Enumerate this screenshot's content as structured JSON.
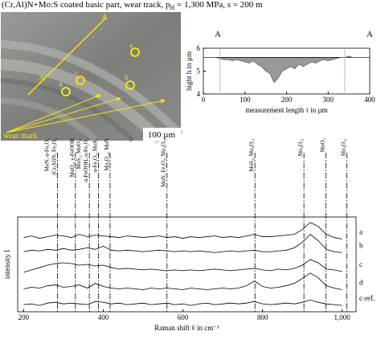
{
  "title": [
    "(Cr,Al)N+Mo:S coated basic part, wear track, p",
    "H",
    " = 1,300 MPa, s = 200 m"
  ],
  "micrograph": {
    "section_labels": [
      "A",
      "A"
    ],
    "spots": [
      "a",
      "b",
      "c",
      "d"
    ],
    "arrow_label": "wear mark",
    "scale_bar": "100 µm"
  },
  "chart_data": [
    {
      "type": "area",
      "end_labels": [
        "A",
        "A"
      ],
      "x_label": "measurement length τ in µm",
      "y_label": "hight h in µm",
      "x": [
        0,
        10,
        20,
        30,
        40,
        50,
        60,
        70,
        80,
        90,
        100,
        110,
        120,
        130,
        140,
        150,
        160,
        170,
        180,
        190,
        200,
        210,
        220,
        230,
        240,
        250,
        260,
        270,
        280,
        290,
        300,
        310,
        320,
        330,
        340,
        350,
        360,
        370,
        380,
        390,
        400
      ],
      "values": [
        5.6,
        5.6,
        5.6,
        5.6,
        5.55,
        5.5,
        5.5,
        5.45,
        5.5,
        5.45,
        5.4,
        5.35,
        5.45,
        5.3,
        5.2,
        5.0,
        4.9,
        4.5,
        4.7,
        5.0,
        5.1,
        5.2,
        5.1,
        5.3,
        5.2,
        5.3,
        5.4,
        5.35,
        5.45,
        5.5,
        5.45,
        5.5,
        5.55,
        5.6,
        5.6,
        5.65,
        5.6,
        5.6,
        5.6,
        5.6,
        5.6
      ],
      "baseline": 5.6,
      "vlines": [
        40,
        340
      ],
      "color": "#999999",
      "xlim": [
        0,
        400
      ],
      "ylim": [
        4,
        6
      ],
      "xticks": [
        0,
        100,
        200,
        300,
        400
      ],
      "yticks": [
        4,
        5,
        6
      ]
    },
    {
      "type": "line",
      "x_label": "Raman shift ṽ in cm⁻¹",
      "y_label": "intensity I",
      "x": [
        200,
        220,
        240,
        260,
        280,
        300,
        320,
        340,
        360,
        380,
        400,
        420,
        440,
        460,
        480,
        500,
        520,
        540,
        560,
        580,
        600,
        620,
        640,
        660,
        680,
        700,
        720,
        740,
        760,
        780,
        800,
        820,
        840,
        860,
        880,
        900,
        920,
        940,
        960,
        980,
        1000
      ],
      "series": [
        {
          "name": "a",
          "color": "#000000",
          "values": [
            9.4,
            9.6,
            9.3,
            9.5,
            9.7,
            9.6,
            9.4,
            9.8,
            9.5,
            9.7,
            9.6,
            9.5,
            9.4,
            9.6,
            9.5,
            9.4,
            9.5,
            9.6,
            9.4,
            9.5,
            9.3,
            9.5,
            9.4,
            9.5,
            9.6,
            9.4,
            9.5,
            9.4,
            9.6,
            9.8,
            9.5,
            9.5,
            9.6,
            9.7,
            9.8,
            10.4,
            11.3,
            10.8,
            9.8,
            9.4,
            9.2
          ]
        },
        {
          "name": "b",
          "color": "#000000",
          "values": [
            7.6,
            7.8,
            7.7,
            7.9,
            7.8,
            8.0,
            7.8,
            7.9,
            8.1,
            7.9,
            8.3,
            7.8,
            7.7,
            7.8,
            7.7,
            7.6,
            7.7,
            7.8,
            7.7,
            7.6,
            7.7,
            7.6,
            7.7,
            7.6,
            7.5,
            7.6,
            7.7,
            7.6,
            7.7,
            7.8,
            7.6,
            7.6,
            7.7,
            7.8,
            8.1,
            8.8,
            9.8,
            9.0,
            7.9,
            7.6,
            7.5
          ]
        },
        {
          "name": "c",
          "color": "#000000",
          "values": [
            5.0,
            5.3,
            5.6,
            5.9,
            6.1,
            6.2,
            6.1,
            5.9,
            6.0,
            5.8,
            5.9,
            5.6,
            5.4,
            5.5,
            5.4,
            5.3,
            5.4,
            5.3,
            5.2,
            5.3,
            5.2,
            5.3,
            5.2,
            5.3,
            5.4,
            5.3,
            5.2,
            5.3,
            5.4,
            5.5,
            5.3,
            5.2,
            5.4,
            5.3,
            5.5,
            5.9,
            6.6,
            6.2,
            5.4,
            5.3,
            5.1
          ]
        },
        {
          "name": "d",
          "color": "#000000",
          "values": [
            2.9,
            3.1,
            3.0,
            3.3,
            3.4,
            3.1,
            3.2,
            3.4,
            3.0,
            3.6,
            3.2,
            3.0,
            2.9,
            3.0,
            2.9,
            2.8,
            3.0,
            2.9,
            3.0,
            2.9,
            2.8,
            3.0,
            2.9,
            2.8,
            2.9,
            3.0,
            2.9,
            3.0,
            3.3,
            3.9,
            3.2,
            3.0,
            3.1,
            3.3,
            3.6,
            4.2,
            4.9,
            4.3,
            3.3,
            3.0,
            2.8
          ]
        },
        {
          "name": "c-ref.",
          "color": "#000000",
          "values": [
            0.9,
            1.0,
            0.8,
            1.1,
            1.2,
            1.0,
            1.1,
            1.0,
            0.9,
            1.3,
            1.2,
            1.0,
            1.1,
            0.9,
            1.0,
            1.1,
            0.9,
            1.0,
            1.1,
            0.9,
            1.0,
            0.8,
            1.0,
            1.1,
            0.9,
            1.0,
            1.1,
            1.0,
            1.1,
            1.3,
            1.0,
            0.9,
            1.0,
            1.1,
            1.0,
            1.2,
            1.5,
            1.2,
            1.0,
            0.9,
            0.8
          ]
        }
      ],
      "ref_lines": [
        {
          "x": 285,
          "labels": [
            "MoN, α-Fe₂O₃",
            "(Cr,Al)N, Fe₃O₄"
          ]
        },
        {
          "x": 330,
          "labels": [
            "MoO₂, γ-FeOOH"
          ]
        },
        {
          "x": 365,
          "labels": [
            "MoS₂, MoO₂,",
            "α-FeOOH, α-Fe₂O₃"
          ]
        },
        {
          "x": 388,
          "labels": [
            "α-Fe₂O₃, MoS₂"
          ]
        },
        {
          "x": 417,
          "labels": [
            "Mo₄O₁₁, MoN"
          ]
        },
        {
          "x": 560,
          "labels": [
            "MoN, Fe₂O₃, Mo₄O₁₁"
          ]
        },
        {
          "x": 781,
          "labels": [
            "MoS₂, Mo₄O₁₁"
          ]
        },
        {
          "x": 904,
          "labels": [
            "Mo₄O₁₁"
          ]
        },
        {
          "x": 959,
          "labels": [
            "MoO₃"
          ]
        },
        {
          "x": 1012,
          "labels": [
            "Mo₄O₁₁"
          ]
        }
      ],
      "xlim": [
        185,
        1035
      ],
      "ylim": [
        0,
        12
      ],
      "xticks": [
        200,
        400,
        600,
        800,
        {
          "value": 1000,
          "label": "1,000"
        }
      ]
    }
  ]
}
